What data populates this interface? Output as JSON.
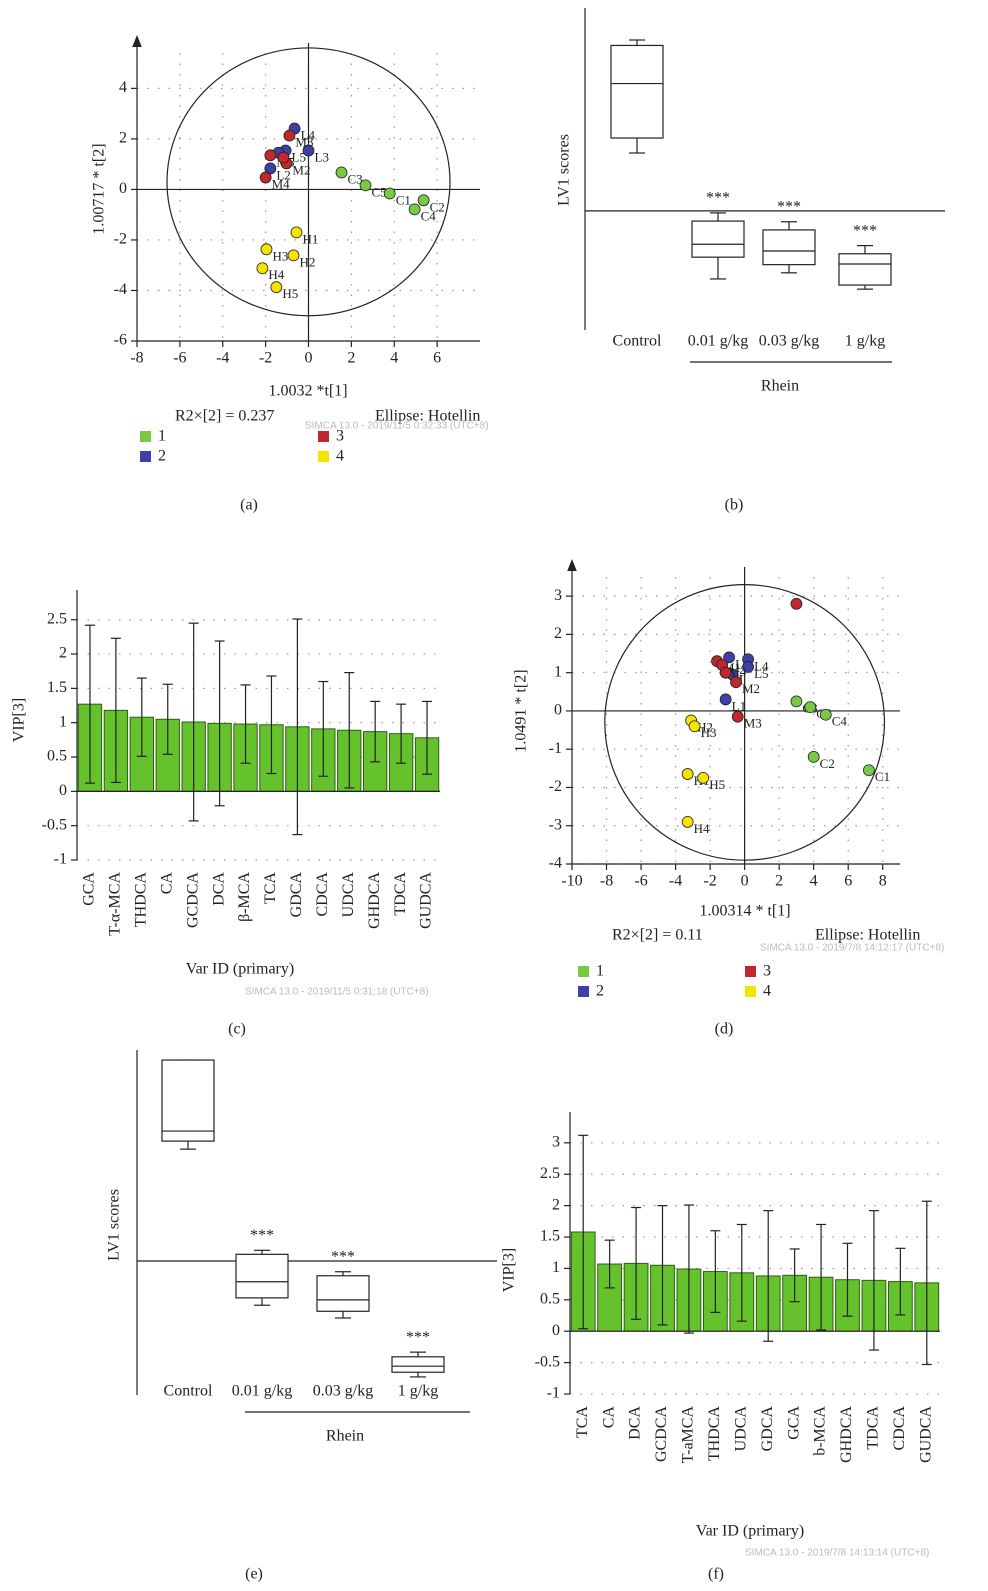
{
  "chart_data": [
    {
      "type": "scatter",
      "panel": "(a)",
      "xlabel": "1.0032 *t[1]",
      "ylabel": "1.00717 * t[2]",
      "xlim": [
        -8,
        8
      ],
      "ylim": [
        -6,
        5.4
      ],
      "xticks": [
        -8,
        -6,
        -4,
        -2,
        0,
        2,
        4,
        6
      ],
      "yticks": [
        -6,
        -4,
        -2,
        0,
        2,
        4
      ],
      "annotations": [
        "R2×[2] = 0.237",
        "Ellipse: Hotellin"
      ],
      "watermark": "SIMCA 13.0 - 2019/11/5 0:32:33 (UTC+8)",
      "ellipse": {
        "cx": 0,
        "cy": 0.3,
        "rx": 6.6,
        "ry": 5.3
      },
      "series": [
        {
          "name": "1",
          "color": "#7ac943",
          "x": [
            1.54,
            2.66,
            3.79,
            5.37,
            4.95
          ],
          "y": [
            0.67,
            0.16,
            -0.16,
            -0.43,
            -0.79
          ],
          "labels": [
            "C3",
            "C5",
            "C1",
            "C2",
            "C4"
          ]
        },
        {
          "name": "2",
          "color": "#3f3fa8",
          "x": [
            -0.65,
            -1.07,
            0,
            -1.78,
            -1.4
          ],
          "y": [
            2.41,
            1.54,
            1.54,
            0.83,
            1.45
          ],
          "labels": [
            "L4",
            "L5",
            "L3",
            "L2",
            null
          ]
        },
        {
          "name": "3",
          "color": "#c1272d",
          "x": [
            -0.89,
            -1.78,
            -1.03,
            -2.0,
            -1.17
          ],
          "y": [
            2.13,
            1.35,
            1.03,
            0.47,
            1.26
          ],
          "labels": [
            "M3",
            "M5",
            "M2",
            "M4",
            null
          ]
        },
        {
          "name": "4",
          "color": "#f5e400",
          "x": [
            -0.56,
            -1.96,
            -0.7,
            -2.15,
            -1.5
          ],
          "y": [
            -1.7,
            -2.37,
            -2.61,
            -3.12,
            -3.87
          ],
          "labels": [
            "H1",
            "H3",
            "H2",
            "H4",
            "H5"
          ]
        }
      ]
    },
    {
      "type": "box",
      "panel": "(b)",
      "ylabel": "LV1 scores",
      "ylim": [
        -1.75,
        2.98
      ],
      "categories": [
        "Control",
        "0.01 g/kg",
        "0.03 g/kg",
        "1 g/kg"
      ],
      "group_label": "Rhein",
      "whisker_low": [
        0.85,
        -1.0,
        -0.91,
        -1.15
      ],
      "q1": [
        1.07,
        -0.68,
        -0.79,
        -1.09
      ],
      "median": [
        1.87,
        -0.49,
        -0.59,
        -0.78
      ],
      "q3": [
        2.43,
        -0.15,
        -0.28,
        -0.63
      ],
      "whisker_high": [
        2.51,
        -0.03,
        -0.16,
        -0.51
      ],
      "significance": [
        null,
        "***",
        "***",
        "***"
      ]
    },
    {
      "type": "bar",
      "panel": "(c)",
      "ylabel": "VIP[3]",
      "xlabel": "Var ID (primary)",
      "color": "#66c22c",
      "watermark": "SIMCA 13.0 - 2019/11/5 0:31:18 (UTC+8)",
      "ylim": [
        -1,
        2.7
      ],
      "yticks": [
        -1,
        -0.5,
        0,
        0.5,
        1,
        1.5,
        2,
        2.5
      ],
      "categories": [
        "GCA",
        "T-α-MCA",
        "THDCA",
        "CA",
        "GCDCA",
        "DCA",
        "β-MCA",
        "TCA",
        "GDCA",
        "CDCA",
        "UDCA",
        "GHDCA",
        "TDCA",
        "GUDCA"
      ],
      "values": [
        1.27,
        1.18,
        1.08,
        1.05,
        1.01,
        0.99,
        0.98,
        0.97,
        0.94,
        0.91,
        0.89,
        0.87,
        0.84,
        0.78
      ],
      "errors": [
        1.15,
        1.05,
        0.57,
        0.51,
        1.44,
        1.2,
        0.57,
        0.71,
        1.57,
        0.69,
        0.84,
        0.44,
        0.43,
        0.53
      ]
    },
    {
      "type": "scatter",
      "panel": "(d)",
      "xlabel": "1.00314 * t[1]",
      "ylabel": "1.0491 * t[2]",
      "xlim": [
        -10,
        9
      ],
      "ylim": [
        -4,
        3.5
      ],
      "xticks": [
        -10,
        -8,
        -6,
        -4,
        -2,
        0,
        2,
        4,
        6,
        8
      ],
      "yticks": [
        -4,
        -3,
        -2,
        -1,
        0,
        1,
        2,
        3
      ],
      "annotations": [
        "R2×[2] = 0.11",
        "Ellipse: Hotellin"
      ],
      "watermark": "SIMCA 13.0 - 2019/7/8 14:12:17 (UTC+8)",
      "ellipse": {
        "cx": 0,
        "cy": -0.3,
        "rx": 8.1,
        "ry": 3.6
      },
      "series": [
        {
          "name": "1",
          "color": "#7ac943",
          "x": [
            3.0,
            3.8,
            4.7,
            4.0,
            7.2
          ],
          "y": [
            0.25,
            0.1,
            -0.1,
            -1.2,
            -1.55
          ],
          "labels": [
            "C3",
            "C5",
            "C4",
            "C2",
            "C1"
          ]
        },
        {
          "name": "2",
          "color": "#3f3fa8",
          "x": [
            -0.9,
            0.2,
            0.2,
            -0.7,
            -1.1
          ],
          "y": [
            1.4,
            1.35,
            1.15,
            0.95,
            0.3
          ],
          "labels": [
            "L3",
            "L4",
            "L5",
            null,
            "L1"
          ]
        },
        {
          "name": "3",
          "color": "#c1272d",
          "x": [
            -1.6,
            -1.3,
            -1.1,
            -0.5,
            -0.4,
            3.0
          ],
          "y": [
            1.3,
            1.2,
            1.0,
            0.75,
            -0.15,
            2.8
          ],
          "labels": [
            "M1",
            "M4",
            "M",
            "M2",
            "M3",
            null
          ]
        },
        {
          "name": "4",
          "color": "#f5e400",
          "x": [
            -3.1,
            -2.9,
            -3.3,
            -2.4,
            -3.3
          ],
          "y": [
            -0.25,
            -0.4,
            -1.65,
            -1.75,
            -2.9
          ],
          "labels": [
            "H2",
            "H3",
            "H1",
            "H5",
            "H4"
          ]
        }
      ]
    },
    {
      "type": "box",
      "panel": "(e)",
      "ylabel": "LV1 scores",
      "ylim": [
        -2.0,
        3.15
      ],
      "categories": [
        "Control",
        "0.01 g/kg",
        "0.03 g/kg",
        "1 g/kg"
      ],
      "group_label": "Rhein",
      "whisker_low": [
        1.67,
        -0.66,
        -0.85,
        -1.73
      ],
      "q1": [
        1.79,
        -0.55,
        -0.75,
        -1.66
      ],
      "median": [
        1.94,
        -0.31,
        -0.58,
        -1.57
      ],
      "q3": [
        3.0,
        0.1,
        -0.22,
        -1.43
      ],
      "whisker_high": [
        3.0,
        0.16,
        -0.16,
        -1.36
      ],
      "significance": [
        null,
        "***",
        "***",
        "***"
      ]
    },
    {
      "type": "bar",
      "panel": "(f)",
      "ylabel": "VIP[3]",
      "xlabel": "Var ID (primary)",
      "color": "#66c22c",
      "watermark": "SIMCA 13.0 - 2019/7/8 14:13:14 (UTC+8)",
      "ylim": [
        -1,
        3.3
      ],
      "yticks": [
        -1,
        -0.5,
        0,
        0.5,
        1,
        1.5,
        2,
        2.5,
        3
      ],
      "categories": [
        "TCA",
        "CA",
        "DCA",
        "GCDCA",
        "T-aMCA",
        "THDCA",
        "UDCA",
        "GDCA",
        "GCA",
        "b-MCA",
        "GHDCA",
        "TDCA",
        "CDCA",
        "GUDCA"
      ],
      "values": [
        1.58,
        1.07,
        1.08,
        1.05,
        0.99,
        0.95,
        0.93,
        0.88,
        0.89,
        0.86,
        0.82,
        0.81,
        0.79,
        0.77
      ],
      "errors": [
        1.54,
        0.38,
        0.89,
        0.95,
        1.02,
        0.65,
        0.77,
        1.04,
        0.42,
        0.84,
        0.58,
        1.11,
        0.53,
        1.3
      ]
    }
  ]
}
